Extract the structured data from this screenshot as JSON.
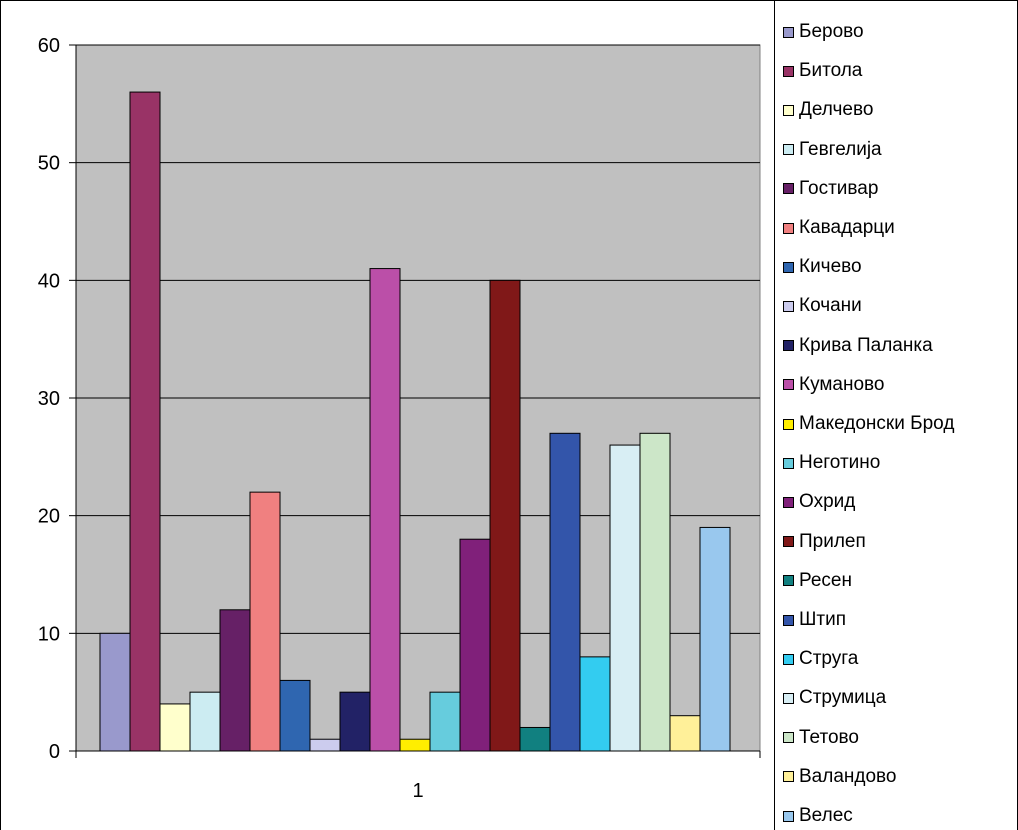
{
  "chart_data": {
    "type": "bar",
    "categories": [
      "1"
    ],
    "ylim": [
      0,
      60
    ],
    "yticks": [
      0,
      10,
      20,
      30,
      40,
      50,
      60
    ],
    "grid": true,
    "plot_background": "#C0C0C0",
    "legend_position": "right",
    "series": [
      {
        "name": "Берово",
        "values": [
          10
        ],
        "color": "#9999CC"
      },
      {
        "name": "Битола",
        "values": [
          56
        ],
        "color": "#993366"
      },
      {
        "name": "Делчево",
        "values": [
          4
        ],
        "color": "#FFFFCC"
      },
      {
        "name": "Гевгелија",
        "values": [
          5
        ],
        "color": "#CCECF2"
      },
      {
        "name": "Гостивар",
        "values": [
          12
        ],
        "color": "#662066"
      },
      {
        "name": "Кавадарци",
        "values": [
          22
        ],
        "color": "#F08080"
      },
      {
        "name": "Кичево",
        "values": [
          6
        ],
        "color": "#2F66B0"
      },
      {
        "name": "Кочани",
        "values": [
          1
        ],
        "color": "#CCCCEE"
      },
      {
        "name": "Крива Паланка",
        "values": [
          5
        ],
        "color": "#222266"
      },
      {
        "name": "Куманово",
        "values": [
          41
        ],
        "color": "#BB4FA8"
      },
      {
        "name": "Македонски Брод",
        "values": [
          1
        ],
        "color": "#FFEE00"
      },
      {
        "name": "Неготино",
        "values": [
          5
        ],
        "color": "#66CCDD"
      },
      {
        "name": "Охрид",
        "values": [
          18
        ],
        "color": "#80207A"
      },
      {
        "name": "Прилеп",
        "values": [
          40
        ],
        "color": "#801818"
      },
      {
        "name": "Ресен",
        "values": [
          2
        ],
        "color": "#118080"
      },
      {
        "name": "Штип",
        "values": [
          27
        ],
        "color": "#3355AA"
      },
      {
        "name": "Струга",
        "values": [
          8
        ],
        "color": "#33CCF0"
      },
      {
        "name": "Струмица",
        "values": [
          26
        ],
        "color": "#D8EEF4"
      },
      {
        "name": "Тетово",
        "values": [
          27
        ],
        "color": "#CCE6C8"
      },
      {
        "name": "Валандово",
        "values": [
          3
        ],
        "color": "#FFF099"
      },
      {
        "name": "Велес",
        "values": [
          19
        ],
        "color": "#99C8EE"
      }
    ]
  }
}
